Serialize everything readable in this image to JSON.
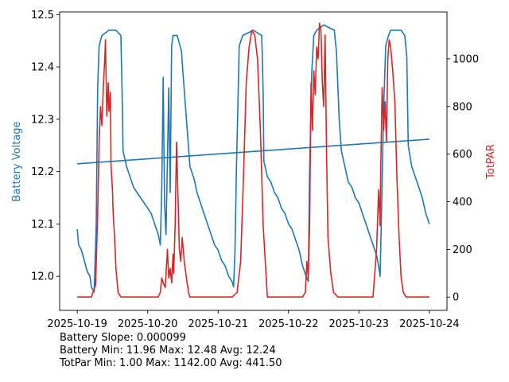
{
  "chart_data": {
    "type": "line",
    "x_ticks": [
      "2025-10-19",
      "2025-10-20",
      "2025-10-21",
      "2025-10-22",
      "2025-10-23",
      "2025-10-24"
    ],
    "xlim_days": [
      -0.25,
      5.25
    ],
    "left_axis": {
      "label": "Battery Voltage",
      "color": "#1f77b4",
      "ylim": [
        11.935,
        12.505
      ],
      "ticks": [
        12.0,
        12.1,
        12.2,
        12.3,
        12.4,
        12.5
      ]
    },
    "right_axis": {
      "label": "TotPAR",
      "color": "#d62728",
      "ylim": [
        -56,
        1197
      ],
      "ticks": [
        0,
        200,
        400,
        600,
        800,
        1000
      ]
    },
    "series": [
      {
        "axis": "left",
        "color": "#1f77b4",
        "x": [
          0.0,
          0.02,
          0.06,
          0.1,
          0.14,
          0.18,
          0.2,
          0.24,
          0.27,
          0.29,
          0.31,
          0.35,
          0.45,
          0.55,
          0.62,
          0.64,
          0.65,
          0.7,
          0.75,
          0.8,
          0.85,
          0.9,
          0.95,
          1.0,
          1.05,
          1.1,
          1.15,
          1.18,
          1.2,
          1.22,
          1.24,
          1.26,
          1.28,
          1.3,
          1.32,
          1.34,
          1.36,
          1.38,
          1.4,
          1.42,
          1.44,
          1.46,
          1.48,
          1.5,
          1.6,
          1.65,
          1.67,
          1.7,
          1.75,
          1.8,
          1.85,
          1.9,
          1.95,
          2.0,
          2.05,
          2.1,
          2.15,
          2.2,
          2.22,
          2.24,
          2.26,
          2.3,
          2.35,
          2.5,
          2.62,
          2.64,
          2.65,
          2.7,
          2.75,
          2.8,
          2.85,
          2.9,
          2.95,
          3.0,
          3.05,
          3.1,
          3.15,
          3.2,
          3.25,
          3.28,
          3.3,
          3.33,
          3.36,
          3.4,
          3.5,
          3.65,
          3.68,
          3.72,
          3.75,
          3.8,
          3.85,
          3.9,
          3.95,
          4.0,
          4.05,
          4.1,
          4.15,
          4.2,
          4.25,
          4.28,
          4.3,
          4.32,
          4.35,
          4.38,
          4.42,
          4.45,
          4.5,
          4.55,
          4.6,
          4.65,
          4.68,
          4.7,
          4.75,
          4.8,
          4.85,
          4.9,
          4.95,
          5.0
        ],
        "values": [
          12.09,
          12.06,
          12.05,
          12.03,
          12.01,
          12.0,
          11.98,
          11.97,
          12.1,
          12.36,
          12.44,
          12.46,
          12.47,
          12.47,
          12.46,
          12.33,
          12.24,
          12.21,
          12.19,
          12.17,
          12.16,
          12.15,
          12.14,
          12.13,
          12.12,
          12.1,
          12.08,
          12.06,
          12.17,
          12.38,
          12.14,
          12.08,
          12.22,
          12.36,
          12.16,
          12.44,
          12.46,
          12.46,
          12.46,
          12.46,
          12.45,
          12.44,
          12.43,
          12.39,
          12.21,
          12.19,
          12.18,
          12.16,
          12.14,
          12.12,
          12.1,
          12.08,
          12.06,
          12.05,
          12.03,
          12.02,
          12.0,
          11.99,
          11.98,
          12.05,
          12.2,
          12.44,
          12.46,
          12.47,
          12.46,
          12.35,
          12.22,
          12.19,
          12.18,
          12.16,
          12.15,
          12.13,
          12.12,
          12.1,
          12.09,
          12.07,
          12.05,
          12.02,
          12.0,
          11.99,
          12.2,
          12.39,
          12.46,
          12.47,
          12.48,
          12.47,
          12.43,
          12.3,
          12.24,
          12.21,
          12.18,
          12.17,
          12.15,
          12.14,
          12.12,
          12.1,
          12.08,
          12.06,
          12.04,
          12.02,
          12.0,
          12.12,
          12.32,
          12.44,
          12.46,
          12.47,
          12.47,
          12.47,
          12.47,
          12.46,
          12.42,
          12.25,
          12.21,
          12.19,
          12.17,
          12.15,
          12.12,
          12.1
        ]
      },
      {
        "axis": "left",
        "color": "#1f77b4",
        "x": [
          0.0,
          5.0
        ],
        "values": [
          12.215,
          12.262
        ]
      },
      {
        "axis": "right",
        "color": "#d62728",
        "x": [
          0.0,
          0.2,
          0.26,
          0.29,
          0.31,
          0.33,
          0.35,
          0.37,
          0.39,
          0.4,
          0.42,
          0.44,
          0.45,
          0.47,
          0.48,
          0.5,
          0.51,
          0.53,
          0.55,
          0.58,
          0.62,
          0.66,
          0.7,
          1.0,
          1.15,
          1.18,
          1.2,
          1.22,
          1.25,
          1.28,
          1.3,
          1.32,
          1.34,
          1.36,
          1.37,
          1.39,
          1.41,
          1.43,
          1.45,
          1.47,
          1.49,
          1.52,
          1.55,
          1.58,
          1.6,
          2.2,
          2.27,
          2.32,
          2.36,
          2.4,
          2.44,
          2.48,
          2.52,
          2.56,
          2.6,
          2.64,
          2.7,
          3.0,
          3.2,
          3.24,
          3.26,
          3.28,
          3.3,
          3.32,
          3.34,
          3.36,
          3.38,
          3.4,
          3.42,
          3.44,
          3.46,
          3.48,
          3.5,
          3.52,
          3.54,
          3.56,
          3.6,
          3.64,
          3.7,
          4.0,
          4.2,
          4.25,
          4.28,
          4.3,
          4.31,
          4.33,
          4.35,
          4.37,
          4.39,
          4.41,
          4.43,
          4.45,
          4.48,
          4.51,
          4.54,
          4.57,
          4.6,
          4.63,
          4.67,
          4.7,
          5.0
        ],
        "values": [
          0,
          0,
          50,
          350,
          650,
          800,
          720,
          880,
          1000,
          1080,
          760,
          900,
          780,
          860,
          550,
          450,
          350,
          250,
          120,
          20,
          0,
          0,
          0,
          0,
          0,
          20,
          80,
          60,
          40,
          200,
          80,
          120,
          60,
          180,
          100,
          300,
          650,
          420,
          200,
          150,
          250,
          150,
          80,
          20,
          0,
          0,
          20,
          150,
          500,
          900,
          1050,
          1120,
          1100,
          1000,
          700,
          300,
          0,
          0,
          0,
          20,
          150,
          80,
          300,
          900,
          700,
          950,
          850,
          1050,
          1000,
          1150,
          1120,
          900,
          800,
          1100,
          600,
          250,
          100,
          20,
          0,
          0,
          0,
          200,
          450,
          300,
          550,
          880,
          700,
          820,
          650,
          1000,
          1080,
          1050,
          950,
          820,
          500,
          250,
          80,
          20,
          0,
          0,
          0
        ]
      }
    ],
    "annotations": [
      "Battery Slope: 0.000099",
      "Battery Min: 11.96 Max: 12.48 Avg: 12.24",
      "TotPar Min: 1.00 Max: 1142.00 Avg: 441.50"
    ]
  }
}
